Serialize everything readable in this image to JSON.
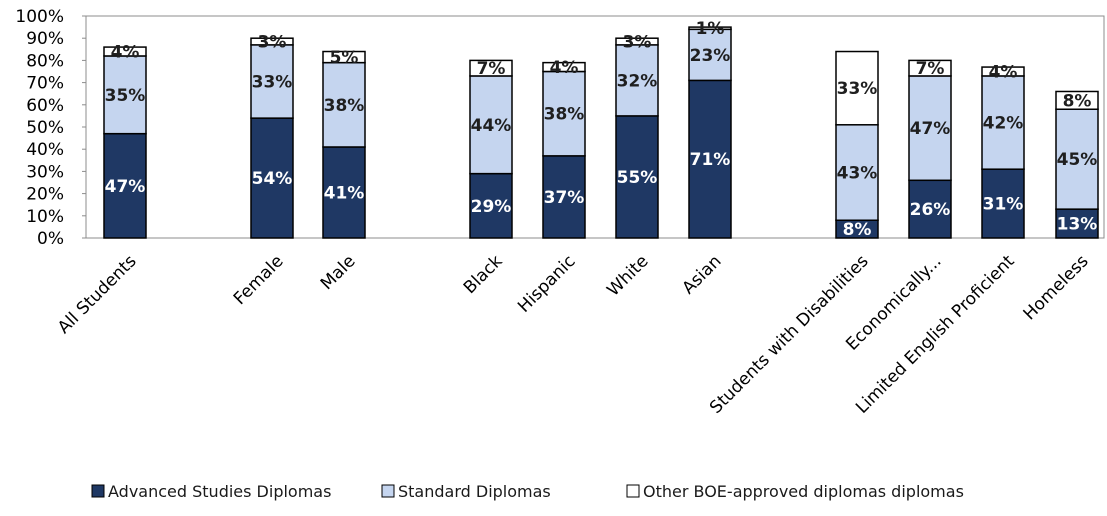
{
  "chart_data": {
    "type": "bar",
    "stacked": true,
    "categories": [
      "All Students",
      "Female",
      "Male",
      "Black",
      "Hispanic",
      "White",
      "Asian",
      "Students with Disabilities",
      "Economically...",
      "Limited English Proficient",
      "Homeless"
    ],
    "groups": [
      [
        0
      ],
      [
        1,
        2
      ],
      [
        3,
        4,
        5,
        6
      ],
      [
        7,
        8,
        9,
        10
      ]
    ],
    "series": [
      {
        "name": "Advanced Studies Diplomas",
        "values": [
          47,
          54,
          41,
          29,
          37,
          55,
          71,
          8,
          26,
          31,
          13
        ],
        "labels": [
          "47%",
          "54%",
          "41%",
          "29%",
          "37%",
          "55%",
          "71%",
          "8%",
          "26%",
          "31%",
          "13%"
        ],
        "color": "#1f3864"
      },
      {
        "name": "Standard Diplomas",
        "values": [
          35,
          33,
          38,
          44,
          38,
          32,
          23,
          43,
          47,
          42,
          45
        ],
        "labels": [
          "35%",
          "33%",
          "38%",
          "44%",
          "38%",
          "32%",
          "23%",
          "43%",
          "47%",
          "42%",
          "45%"
        ],
        "color": "#c5d5ef"
      },
      {
        "name": "Other BOE-approved diplomas diplomas",
        "values": [
          4,
          3,
          5,
          7,
          4,
          3,
          1,
          33,
          7,
          4,
          8
        ],
        "labels": [
          "4%",
          "3%",
          "5%",
          "7%",
          "4%",
          "3%",
          "1%",
          "33%",
          "7%",
          "4%",
          "8%"
        ],
        "color": "#ffffff"
      }
    ],
    "ylim": [
      0,
      100
    ],
    "yticks": [
      "0%",
      "10%",
      "20%",
      "30%",
      "40%",
      "50%",
      "60%",
      "70%",
      "80%",
      "90%",
      "100%"
    ],
    "grid": false,
    "legend_position": "bottom"
  }
}
